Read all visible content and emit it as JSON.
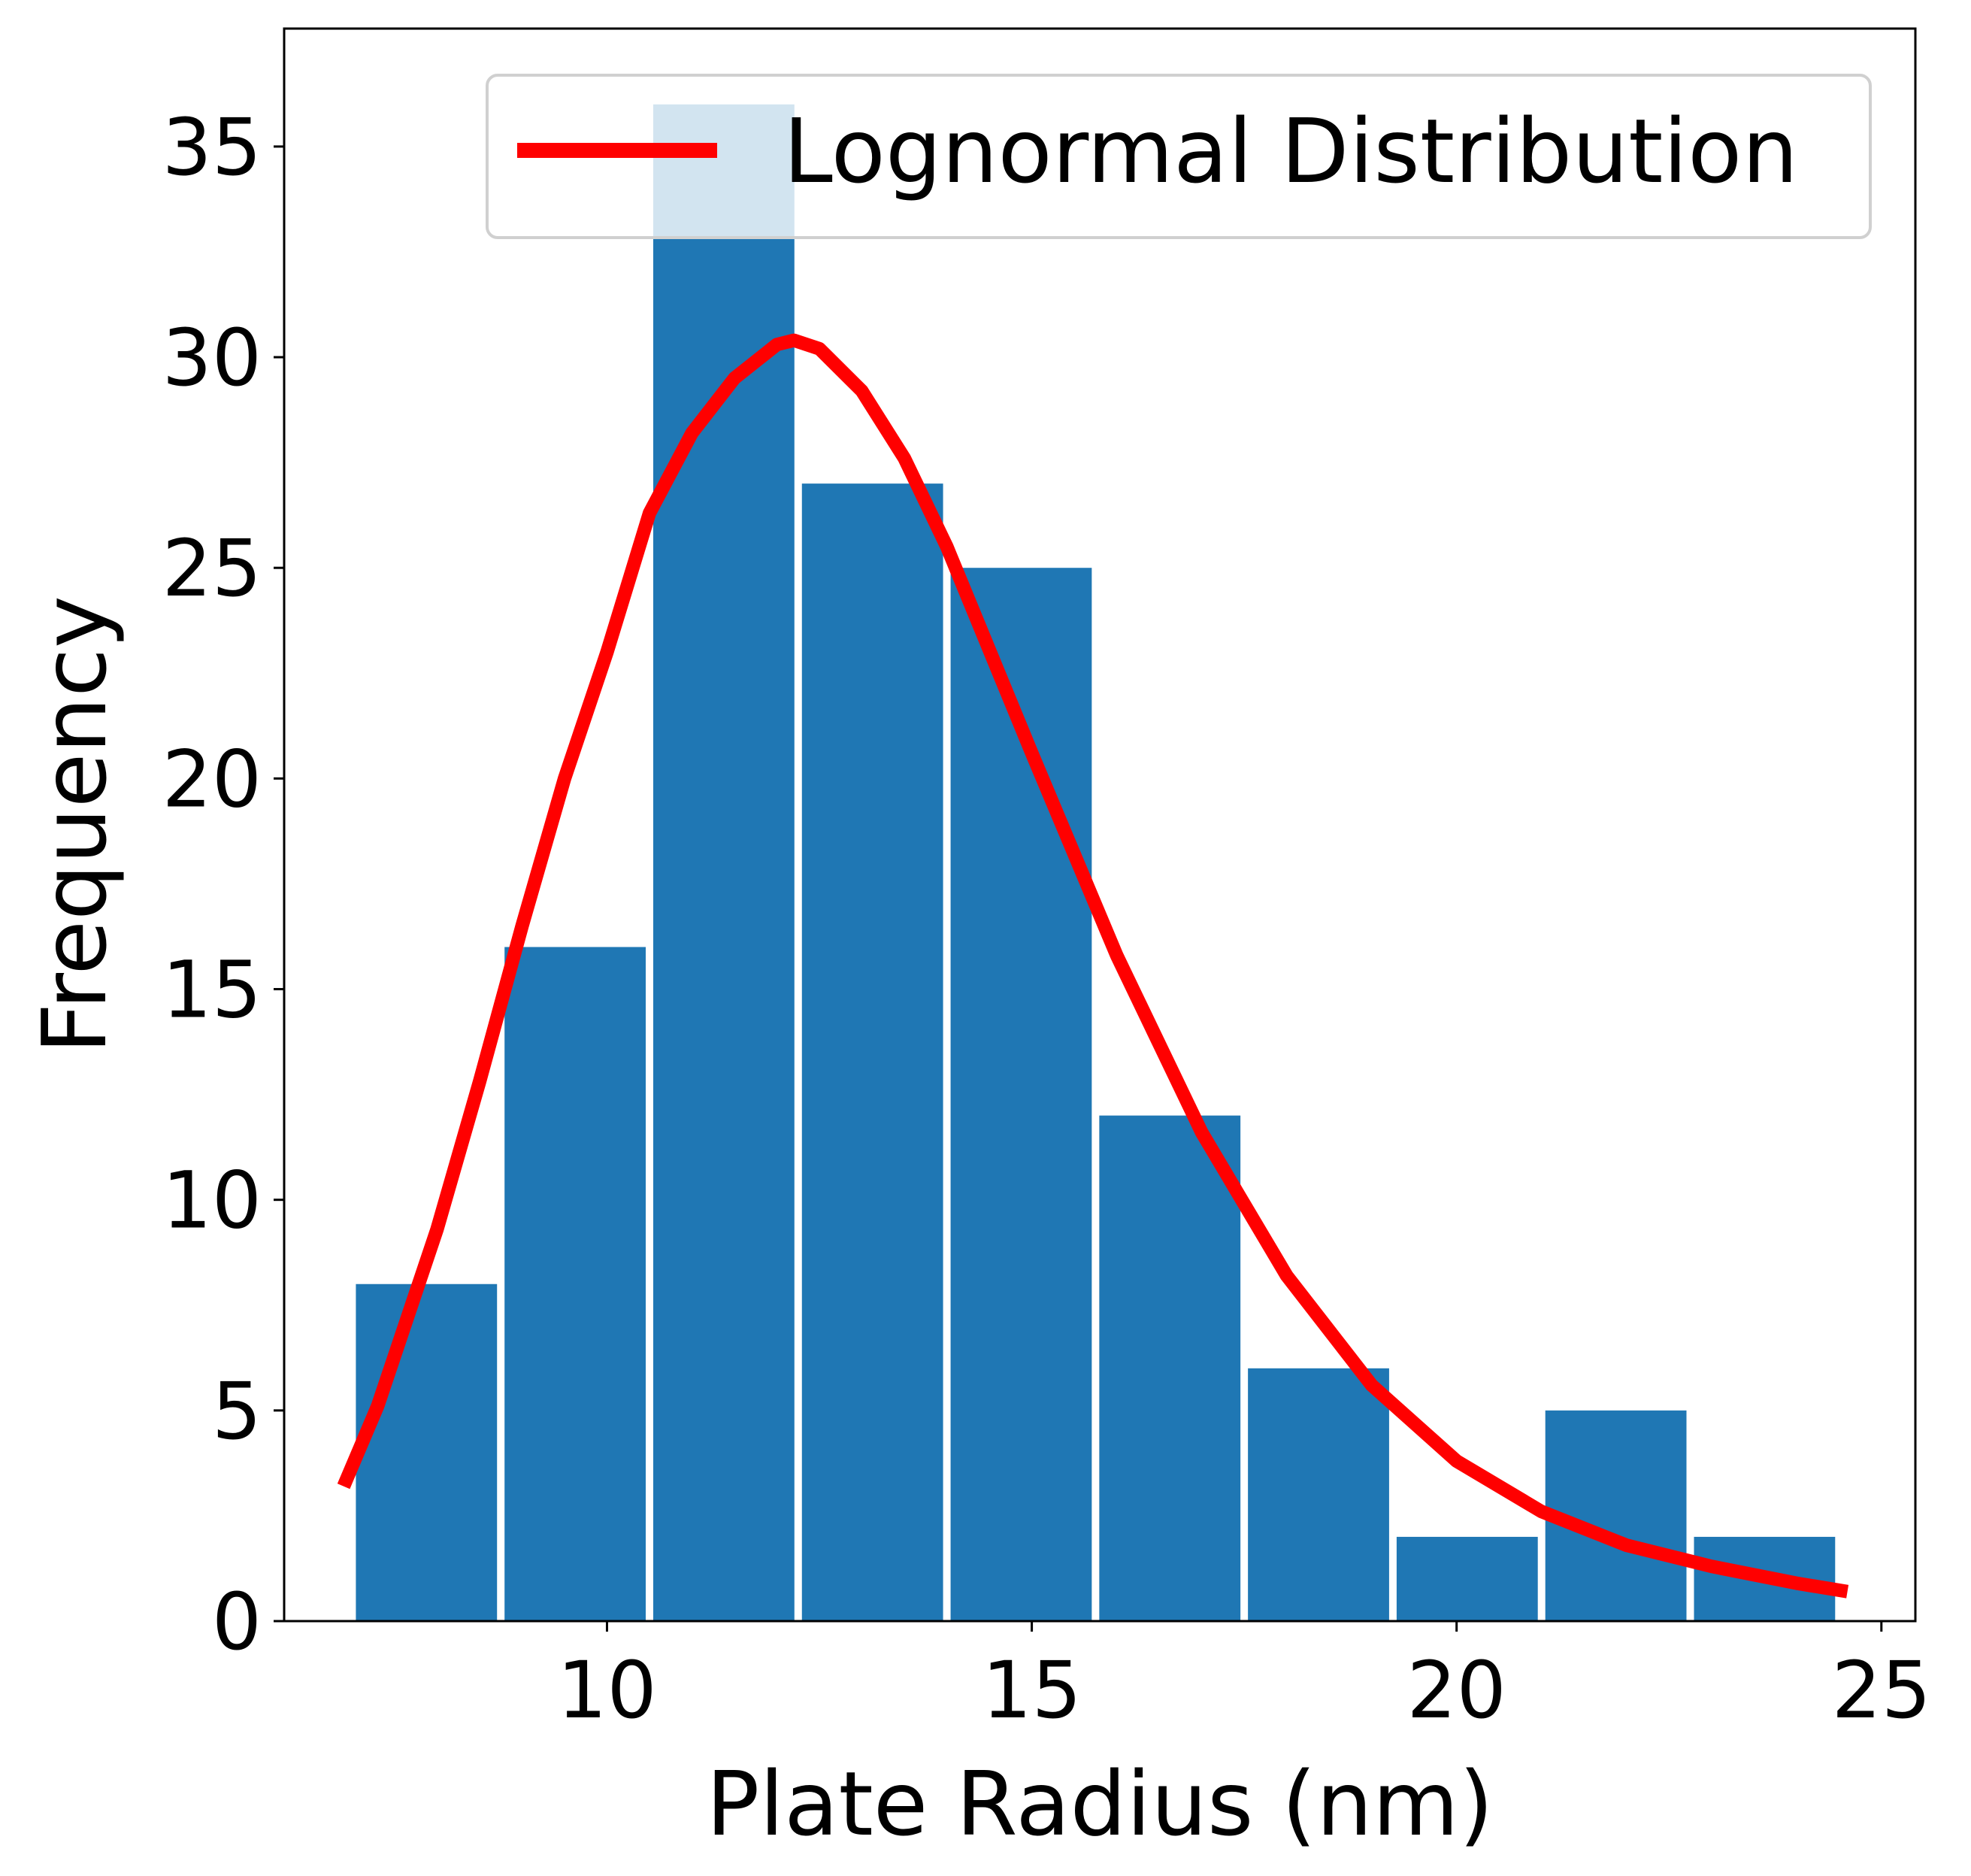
{
  "chart_data": {
    "type": "bar",
    "xlabel": "Plate Radius (nm)",
    "ylabel": "Frequency",
    "xlim": [
      6.2,
      25.4
    ],
    "ylim": [
      0,
      37.8
    ],
    "xticks": [
      "10",
      "15",
      "20",
      "25"
    ],
    "yticks": [
      "0",
      "5",
      "10",
      "15",
      "20",
      "25",
      "30",
      "35"
    ],
    "grid": false,
    "legend_position": "top-right",
    "bins": [
      {
        "x0": 7.0,
        "x1": 8.75,
        "value": 8
      },
      {
        "x0": 8.75,
        "x1": 10.5,
        "value": 16
      },
      {
        "x0": 10.5,
        "x1": 12.25,
        "value": 36
      },
      {
        "x0": 12.25,
        "x1": 14.0,
        "value": 27
      },
      {
        "x0": 14.0,
        "x1": 15.75,
        "value": 25
      },
      {
        "x0": 15.75,
        "x1": 17.5,
        "value": 12
      },
      {
        "x0": 17.5,
        "x1": 19.25,
        "value": 6
      },
      {
        "x0": 19.25,
        "x1": 21.0,
        "value": 2
      },
      {
        "x0": 21.0,
        "x1": 22.75,
        "value": 5
      },
      {
        "x0": 22.75,
        "x1": 24.5,
        "value": 2
      }
    ],
    "series": [
      {
        "name": "Lognormal Distribution",
        "kind": "line",
        "color": "#ff0000",
        "x": [
          6.9,
          7.3,
          7.7,
          8.0,
          8.5,
          9.0,
          9.5,
          10.0,
          10.5,
          11.0,
          11.5,
          12.0,
          12.2,
          12.5,
          13.0,
          13.5,
          14.0,
          15.0,
          16.0,
          17.0,
          18.0,
          19.0,
          20.0,
          21.0,
          22.0,
          23.0,
          24.0,
          24.6
        ],
        "y": [
          3.2,
          5.1,
          7.5,
          9.3,
          12.8,
          16.5,
          20.0,
          23.0,
          26.3,
          28.2,
          29.5,
          30.3,
          30.4,
          30.2,
          29.2,
          27.6,
          25.5,
          20.6,
          15.8,
          11.6,
          8.2,
          5.6,
          3.8,
          2.6,
          1.8,
          1.3,
          0.9,
          0.7
        ]
      }
    ],
    "bar_color": "#1f77b4"
  }
}
